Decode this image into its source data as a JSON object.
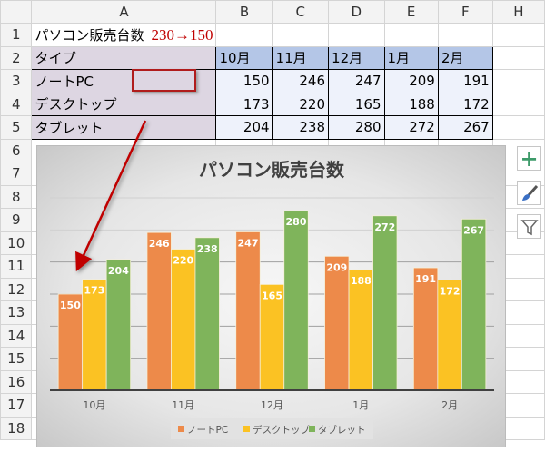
{
  "columns": [
    "A",
    "B",
    "C",
    "D",
    "E",
    "F",
    "H"
  ],
  "row_numbers": [
    "1",
    "2",
    "3",
    "4",
    "5",
    "6",
    "7",
    "8",
    "9",
    "10",
    "11",
    "12",
    "13",
    "14",
    "15",
    "16",
    "17",
    "18"
  ],
  "cell_A1": "パソコン販売台数",
  "annotation": "230→150",
  "table": {
    "header": [
      "タイプ",
      "10月",
      "11月",
      "12月",
      "1月",
      "2月"
    ],
    "rows": [
      {
        "label": "ノートPC",
        "values": [
          "150",
          "246",
          "247",
          "209",
          "191"
        ]
      },
      {
        "label": "デスクトップ",
        "values": [
          "173",
          "220",
          "165",
          "188",
          "172"
        ]
      },
      {
        "label": "タブレット",
        "values": [
          "204",
          "238",
          "280",
          "272",
          "267"
        ]
      }
    ]
  },
  "chart_data": {
    "type": "bar",
    "title": "パソコン販売台数",
    "categories": [
      "10月",
      "11月",
      "12月",
      "1月",
      "2月"
    ],
    "series": [
      {
        "name": "ノートPC",
        "color": "#ed8a4a",
        "values": [
          150,
          246,
          247,
          209,
          191
        ]
      },
      {
        "name": "デスクトップ",
        "color": "#fbc223",
        "values": [
          173,
          220,
          165,
          188,
          172
        ]
      },
      {
        "name": "タブレット",
        "color": "#7fb45b",
        "values": [
          204,
          238,
          280,
          272,
          267
        ]
      }
    ],
    "ylim": [
      0,
      300
    ],
    "yticks": [
      0,
      50,
      100,
      150,
      200,
      250,
      300
    ],
    "grid": true,
    "legend": "bottom"
  },
  "side_buttons": [
    "chart-elements",
    "chart-styles",
    "chart-filters"
  ]
}
